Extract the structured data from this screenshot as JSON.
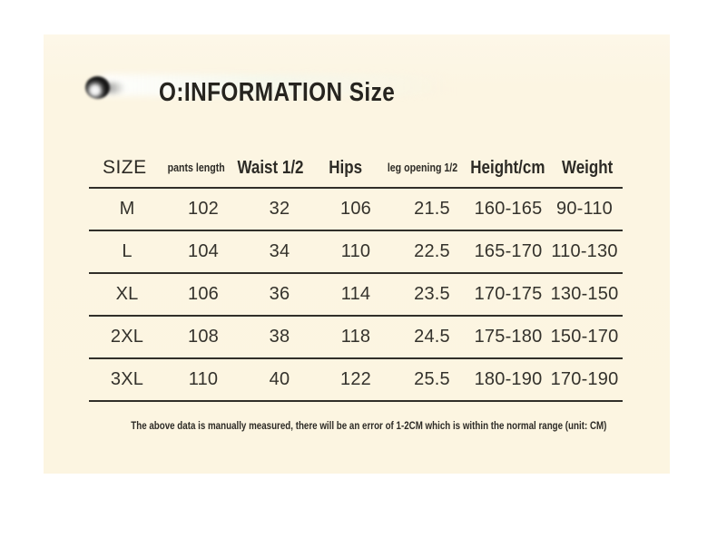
{
  "colors": {
    "page_bg": "#ffffff",
    "panel_bg": "#fcf5e1",
    "text_dark": "#2d2b26",
    "rule": "#312f29"
  },
  "header": {
    "title": "O:INFORMATION Size",
    "logo_icon": "blurred-brand-logo"
  },
  "table": {
    "headers": [
      "SIZE",
      "pants length",
      "Waist 1/2",
      "Hips",
      "leg opening 1/2",
      "Height/cm",
      "Weight"
    ],
    "rows": [
      [
        "M",
        "102",
        "32",
        "106",
        "21.5",
        "160-165",
        "90-110"
      ],
      [
        "L",
        "104",
        "34",
        "110",
        "22.5",
        "165-170",
        "110-130"
      ],
      [
        "XL",
        "106",
        "36",
        "114",
        "23.5",
        "170-175",
        "130-150"
      ],
      [
        "2XL",
        "108",
        "38",
        "118",
        "24.5",
        "175-180",
        "150-170"
      ],
      [
        "3XL",
        "110",
        "40",
        "122",
        "25.5",
        "180-190",
        "170-190"
      ]
    ]
  },
  "footer": {
    "note": "The above data is manually measured, there will be an error of 1-2CM which is within the normal range (unit: CM)"
  }
}
